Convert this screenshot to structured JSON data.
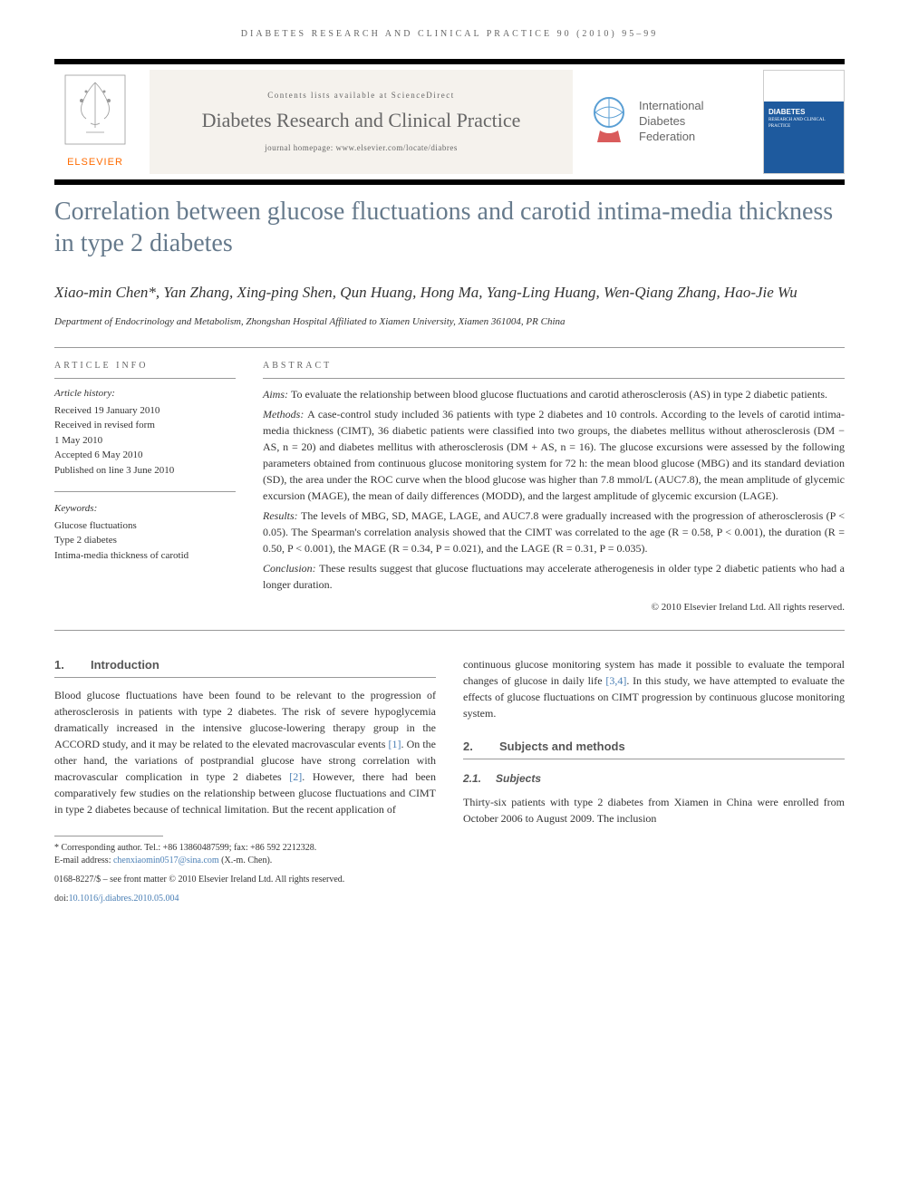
{
  "running_header": "DIABETES RESEARCH AND CLINICAL PRACTICE 90 (2010) 95–99",
  "masthead": {
    "publisher": "ELSEVIER",
    "contents_line": "Contents lists available at ScienceDirect",
    "journal_name": "Diabetes Research and Clinical Practice",
    "homepage": "journal homepage: www.elsevier.com/locate/diabres",
    "federation_line1": "International",
    "federation_line2": "Diabetes",
    "federation_line3": "Federation"
  },
  "article_title": "Correlation between glucose fluctuations and carotid intima-media thickness in type 2 diabetes",
  "authors": "Xiao-min Chen*, Yan Zhang, Xing-ping Shen, Qun Huang, Hong Ma, Yang-Ling Huang, Wen-Qiang Zhang, Hao-Jie Wu",
  "affiliation": "Department of Endocrinology and Metabolism, Zhongshan Hospital Affiliated to Xiamen University, Xiamen 361004, PR China",
  "info": {
    "heading": "ARTICLE INFO",
    "history_title": "Article history:",
    "history": [
      "Received 19 January 2010",
      "Received in revised form",
      "1 May 2010",
      "Accepted 6 May 2010",
      "Published on line 3 June 2010"
    ],
    "keywords_title": "Keywords:",
    "keywords": [
      "Glucose fluctuations",
      "Type 2 diabetes",
      "Intima-media thickness of carotid"
    ]
  },
  "abstract": {
    "heading": "ABSTRACT",
    "aims": "To evaluate the relationship between blood glucose fluctuations and carotid atherosclerosis (AS) in type 2 diabetic patients.",
    "methods": "A case-control study included 36 patients with type 2 diabetes and 10 controls. According to the levels of carotid intima-media thickness (CIMT), 36 diabetic patients were classified into two groups, the diabetes mellitus without atherosclerosis (DM − AS, n = 20) and diabetes mellitus with atherosclerosis (DM + AS, n = 16). The glucose excursions were assessed by the following parameters obtained from continuous glucose monitoring system for 72 h: the mean blood glucose (MBG) and its standard deviation (SD), the area under the ROC curve when the blood glucose was higher than 7.8 mmol/L (AUC7.8), the mean amplitude of glycemic excursion (MAGE), the mean of daily differences (MODD), and the largest amplitude of glycemic excursion (LAGE).",
    "results": "The levels of MBG, SD, MAGE, LAGE, and AUC7.8 were gradually increased with the progression of atherosclerosis (P < 0.05). The Spearman's correlation analysis showed that the CIMT was correlated to the age (R = 0.58, P < 0.001), the duration (R = 0.50, P < 0.001), the MAGE (R = 0.34, P = 0.021), and the LAGE (R = 0.31, P = 0.035).",
    "conclusion": "These results suggest that glucose fluctuations may accelerate atherogenesis in older type 2 diabetic patients who had a longer duration.",
    "copyright": "© 2010 Elsevier Ireland Ltd. All rights reserved."
  },
  "sections": {
    "s1_num": "1.",
    "s1_title": "Introduction",
    "s1_body": "Blood glucose fluctuations have been found to be relevant to the progression of atherosclerosis in patients with type 2 diabetes. The risk of severe hypoglycemia dramatically increased in the intensive glucose-lowering therapy group in the ACCORD study, and it may be related to the elevated macrovascular events [1]. On the other hand, the variations of postprandial glucose have strong correlation with macrovascular complication in type 2 diabetes [2]. However, there had been comparatively few studies on the relationship between glucose fluctuations and CIMT in type 2 diabetes because of technical limitation. But the recent application of",
    "s1_body_cont": "continuous glucose monitoring system has made it possible to evaluate the temporal changes of glucose in daily life [3,4]. In this study, we have attempted to evaluate the effects of glucose fluctuations on CIMT progression by continuous glucose monitoring system.",
    "s2_num": "2.",
    "s2_title": "Subjects and methods",
    "s21_num": "2.1.",
    "s21_title": "Subjects",
    "s21_body": "Thirty-six patients with type 2 diabetes from Xiamen in China were enrolled from October 2006 to August 2009. The inclusion"
  },
  "footnote": {
    "corresponding": "* Corresponding author. Tel.: +86 13860487599; fax: +86 592 2212328.",
    "email_label": "E-mail address: ",
    "email": "chenxiaomin0517@sina.com",
    "email_suffix": " (X.-m. Chen).",
    "issn": "0168-8227/$ – see front matter © 2010 Elsevier Ireland Ltd. All rights reserved.",
    "doi_label": "doi:",
    "doi": "10.1016/j.diabres.2010.05.004"
  },
  "colors": {
    "title_color": "#667a8c",
    "publisher_orange": "#ff6b00",
    "link_blue": "#4a7fb5",
    "bar_black": "#000000",
    "cover_blue": "#1e5a9e"
  }
}
